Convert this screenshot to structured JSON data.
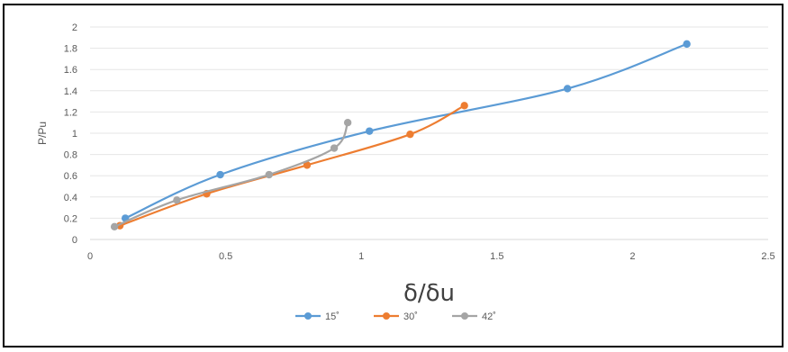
{
  "chart_data": {
    "type": "line",
    "title": "",
    "xlabel": "δ/δu",
    "ylabel": "P/Pu",
    "xlim": [
      0,
      2.5
    ],
    "ylim": [
      0,
      2
    ],
    "x_ticks": [
      "0",
      "0.5",
      "1",
      "1.5",
      "2",
      "2.5"
    ],
    "y_ticks": [
      "0",
      "0.2",
      "0.4",
      "0.6",
      "0.8",
      "1",
      "1.2",
      "1.4",
      "1.6",
      "1.8",
      "2"
    ],
    "grid": true,
    "smooth": true,
    "legend_position": "bottom",
    "series": [
      {
        "name": "15˚",
        "color": "#5B9BD5",
        "x": [
          0.13,
          0.48,
          1.03,
          1.76,
          2.2
        ],
        "y": [
          0.2,
          0.61,
          1.02,
          1.42,
          1.84
        ]
      },
      {
        "name": "30˚",
        "color": "#ED7D31",
        "x": [
          0.11,
          0.43,
          0.8,
          1.18,
          1.38
        ],
        "y": [
          0.13,
          0.43,
          0.7,
          0.99,
          1.26
        ]
      },
      {
        "name": "42˚",
        "color": "#A5A5A5",
        "x": [
          0.09,
          0.32,
          0.66,
          0.9,
          0.95
        ],
        "y": [
          0.12,
          0.37,
          0.61,
          0.86,
          1.1
        ]
      }
    ]
  }
}
